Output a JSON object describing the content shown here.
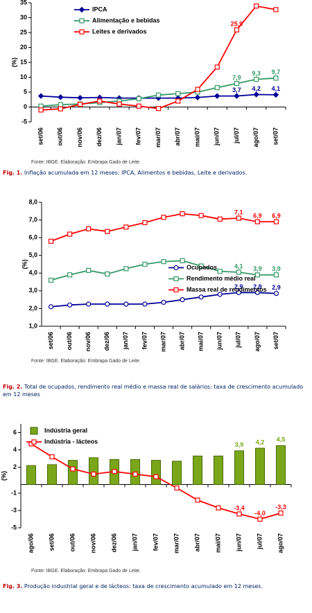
{
  "chart_data": [
    {
      "type": "line",
      "y_label": "(%)",
      "categories": [
        "set/06",
        "out/06",
        "nov/06",
        "dez/06",
        "jan/07",
        "fev/07",
        "mar/07",
        "abr/07",
        "mai/07",
        "jun/07",
        "jul/07",
        "ago/07",
        "set/07"
      ],
      "series": [
        {
          "name": "IPCA",
          "color": "#000099",
          "marker": "diamond",
          "values": [
            3.7,
            3.3,
            3.1,
            3.2,
            3.0,
            3.0,
            3.0,
            3.0,
            3.2,
            3.7,
            3.7,
            4.2,
            4.1
          ],
          "value_labels": [
            null,
            null,
            null,
            null,
            null,
            null,
            null,
            null,
            null,
            null,
            "3,7",
            "4,2",
            "4,1"
          ]
        },
        {
          "name": "Alimentação e bebidas",
          "color": "#339966",
          "marker": "square",
          "values": [
            0.3,
            0.8,
            1.0,
            1.5,
            2.0,
            2.8,
            4.0,
            4.5,
            5.0,
            6.5,
            7.9,
            9.3,
            9.7
          ],
          "value_labels": [
            null,
            null,
            null,
            null,
            null,
            null,
            null,
            null,
            null,
            null,
            "7,9",
            "9,3",
            "9,7"
          ]
        },
        {
          "name": "Leites e derivados",
          "color": "#ff0000",
          "marker": "square",
          "values": [
            -1.0,
            -0.6,
            0.9,
            2.0,
            1.0,
            0.3,
            -0.5,
            2.0,
            5.9,
            13.4,
            25.9,
            33.9,
            32.7
          ],
          "value_labels": [
            null,
            null,
            null,
            null,
            null,
            null,
            null,
            null,
            null,
            null,
            "25,9",
            null,
            null
          ]
        }
      ],
      "ylim": [
        -5,
        35
      ],
      "yticks": [
        -5,
        0,
        5,
        10,
        15,
        20,
        25,
        30,
        35
      ],
      "legend": "upper left",
      "source": "Fonte: IBGE. Elaboração: Embrapa Gado de Leite.",
      "figure": "Fig. 1.",
      "caption": "Inflação acumulada em 12 meses: IPCA, Alimentos e bebidas, Leite e derivados."
    },
    {
      "type": "line",
      "y_label": "(%)",
      "categories": [
        "set/06",
        "out/06",
        "nov/06",
        "dez/06",
        "jan/07",
        "fev/07",
        "mar/07",
        "abr/07",
        "mai/07",
        "jun/07",
        "jul/07",
        "ago/07",
        "set/07"
      ],
      "series": [
        {
          "name": "Ocupados",
          "color": "#000099",
          "marker": "circle",
          "values": [
            2.1,
            2.2,
            2.25,
            2.25,
            2.25,
            2.25,
            2.35,
            2.5,
            2.65,
            2.8,
            2.9,
            2.9,
            2.85
          ],
          "value_labels": [
            null,
            null,
            null,
            null,
            null,
            null,
            null,
            null,
            null,
            null,
            "2,9",
            "2,9",
            "2,9"
          ]
        },
        {
          "name": "Rendimento médio real",
          "color": "#339966",
          "marker": "square",
          "values": [
            3.6,
            3.9,
            4.15,
            3.95,
            4.25,
            4.5,
            4.65,
            4.7,
            4.4,
            4.1,
            4.05,
            3.9,
            3.9
          ],
          "value_labels": [
            null,
            null,
            null,
            null,
            null,
            null,
            null,
            null,
            null,
            null,
            "4,1",
            "3,9",
            "3,9"
          ]
        },
        {
          "name": "Massa real de rendimentos",
          "color": "#ff0000",
          "marker": "square",
          "values": [
            5.8,
            6.2,
            6.5,
            6.35,
            6.6,
            6.85,
            7.15,
            7.35,
            7.25,
            7.05,
            7.1,
            6.9,
            6.9
          ],
          "value_labels": [
            null,
            null,
            null,
            null,
            null,
            null,
            null,
            null,
            null,
            null,
            "7,1",
            "6,9",
            "6,9"
          ]
        }
      ],
      "ylim": [
        1,
        8
      ],
      "yticks": [
        {
          "value": 1,
          "label": "1,0"
        },
        {
          "value": 2,
          "label": "2,0"
        },
        {
          "value": 3,
          "label": "3,0"
        },
        {
          "value": 4,
          "label": "4,0"
        },
        {
          "value": 5,
          "label": "5,0"
        },
        {
          "value": 6,
          "label": "6,0"
        },
        {
          "value": 7,
          "label": "7,0"
        },
        {
          "value": 8,
          "label": "8,0"
        }
      ],
      "legend": "center right",
      "source": "Fonte: IBGE. Elaboração: Embrapa Gado de Leite.",
      "figure": "Fig. 2.",
      "caption": "Total de ocupados, rendimento real médio e massa real de salários: taxa de crescimento acumulado em 12 meses"
    },
    {
      "type": "combo",
      "y_label": "(%)",
      "categories": [
        "ago/06",
        "set/06",
        "out/06",
        "nov/06",
        "dez/06",
        "jan/07",
        "fev/07",
        "mar/07",
        "abr/07",
        "mai/07",
        "jun/07",
        "jul/07",
        "ago/07"
      ],
      "series": [
        {
          "name": "Indústria geral",
          "kind": "bar",
          "color": "#7aa61a",
          "values": [
            2.2,
            2.3,
            2.8,
            3.1,
            2.9,
            2.9,
            2.8,
            2.7,
            3.3,
            3.3,
            3.9,
            4.2,
            4.5
          ],
          "value_labels": [
            null,
            null,
            null,
            null,
            null,
            null,
            null,
            null,
            null,
            null,
            "3,9",
            "4,2",
            "4,5"
          ]
        },
        {
          "name": "Indústria - lácteos",
          "kind": "line",
          "color": "#ff0000",
          "marker": "square",
          "values": [
            4.7,
            3.2,
            1.8,
            1.2,
            1.5,
            1.2,
            0.9,
            -0.4,
            -1.8,
            -2.7,
            -3.4,
            -4.0,
            -3.3
          ],
          "value_labels": [
            null,
            null,
            null,
            null,
            null,
            null,
            null,
            null,
            null,
            null,
            "-3,4",
            "-4,0",
            "-3,3"
          ]
        }
      ],
      "ylim": [
        -5,
        7
      ],
      "yticks": [
        -5,
        -3,
        -1,
        2,
        4,
        6
      ],
      "legend": "upper left",
      "source": "Fonte: IBGE. Elaboração: Embrapa Gado de Leite.",
      "figure": "Fig. 3.",
      "caption": "Produção industrial geral e de lácteos: taxa de crescimento acumulado em 12 meses."
    }
  ]
}
